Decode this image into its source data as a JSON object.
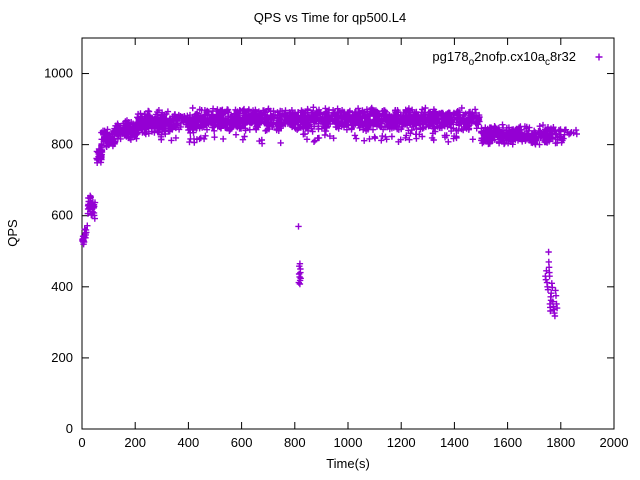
{
  "window": {
    "title": "QPS vs Time for qp500.L4"
  },
  "chart_data": {
    "type": "scatter",
    "title": "QPS vs Time for qp500.L4",
    "xlabel": "Time(s)",
    "ylabel": "QPS",
    "xlim": [
      0,
      2000
    ],
    "ylim": [
      0,
      1100
    ],
    "xticks": [
      0,
      200,
      400,
      600,
      800,
      1000,
      1200,
      1400,
      1600,
      1800,
      2000
    ],
    "yticks": [
      0,
      200,
      400,
      600,
      800,
      1000
    ],
    "grid": false,
    "legend_position": "top-right-inside",
    "marker": "plus",
    "marker_color": "#9400d3",
    "border_color": "#000000",
    "series": [
      {
        "name": "pg178_o2nofp.cx10a_c8r32",
        "name_parts": [
          {
            "t": "pg178"
          },
          {
            "t": "o",
            "sub": true
          },
          {
            "t": "2nofp.cx10a"
          },
          {
            "t": "c",
            "sub": true
          },
          {
            "t": "8r32"
          }
        ],
        "seed": 1337,
        "description": "QPS ramps from ~520 at t=0 to a dense plateau of ~840-905 QPS between t=200s and t=1490s, steps down to ~800-855 QPS from t=1500s to t=1815s; outlier dip clusters near t=820s (~410-570 QPS) and t=1745-1790s (~320-500 QPS).",
        "band_segments": [
          {
            "t0": 0,
            "t1": 10,
            "n": 12,
            "ymin": 515,
            "ymax": 552
          },
          {
            "t0": 8,
            "t1": 22,
            "n": 10,
            "ymin": 528,
            "ymax": 582
          },
          {
            "t0": 20,
            "t1": 50,
            "n": 34,
            "ymin": 588,
            "ymax": 668
          },
          {
            "t0": 55,
            "t1": 75,
            "n": 36,
            "ymin": 745,
            "ymax": 802
          },
          {
            "t0": 72,
            "t1": 125,
            "n": 60,
            "ymin": 788,
            "ymax": 848
          },
          {
            "t0": 120,
            "t1": 210,
            "n": 110,
            "ymin": 808,
            "ymax": 870
          },
          {
            "t0": 205,
            "t1": 420,
            "n": 240,
            "ymin": 828,
            "ymax": 898
          },
          {
            "t0": 415,
            "t1": 1495,
            "n": 1300,
            "ymin": 836,
            "ymax": 906
          },
          {
            "t0": 240,
            "t1": 1480,
            "n": 70,
            "ymin": 802,
            "ymax": 836
          },
          {
            "t0": 1500,
            "t1": 1815,
            "n": 320,
            "ymin": 796,
            "ymax": 858
          },
          {
            "t0": 1812,
            "t1": 1860,
            "n": 10,
            "ymin": 822,
            "ymax": 850
          }
        ],
        "outlier_points": [
          [
            814,
            570
          ],
          [
            817,
            458
          ],
          [
            819,
            465
          ],
          [
            821,
            450
          ],
          [
            816,
            436
          ],
          [
            818,
            428
          ],
          [
            820,
            418
          ],
          [
            822,
            424
          ],
          [
            815,
            412
          ],
          [
            821,
            440
          ],
          [
            819,
            408
          ],
          [
            1742,
            430
          ],
          [
            1744,
            420
          ],
          [
            1746,
            445
          ],
          [
            1748,
            412
          ],
          [
            1750,
            400
          ],
          [
            1752,
            392
          ],
          [
            1754,
            498
          ],
          [
            1755,
            470
          ],
          [
            1756,
            455
          ],
          [
            1757,
            440
          ],
          [
            1758,
            430
          ],
          [
            1759,
            352
          ],
          [
            1760,
            342
          ],
          [
            1761,
            332
          ],
          [
            1762,
            372
          ],
          [
            1763,
            362
          ],
          [
            1764,
            382
          ],
          [
            1766,
            410
          ],
          [
            1768,
            398
          ],
          [
            1770,
            358
          ],
          [
            1772,
            345
          ],
          [
            1774,
            336
          ],
          [
            1776,
            326
          ],
          [
            1778,
            318
          ],
          [
            1780,
            390
          ],
          [
            1782,
            375
          ],
          [
            1784,
            352
          ],
          [
            1786,
            340
          ]
        ]
      }
    ]
  }
}
